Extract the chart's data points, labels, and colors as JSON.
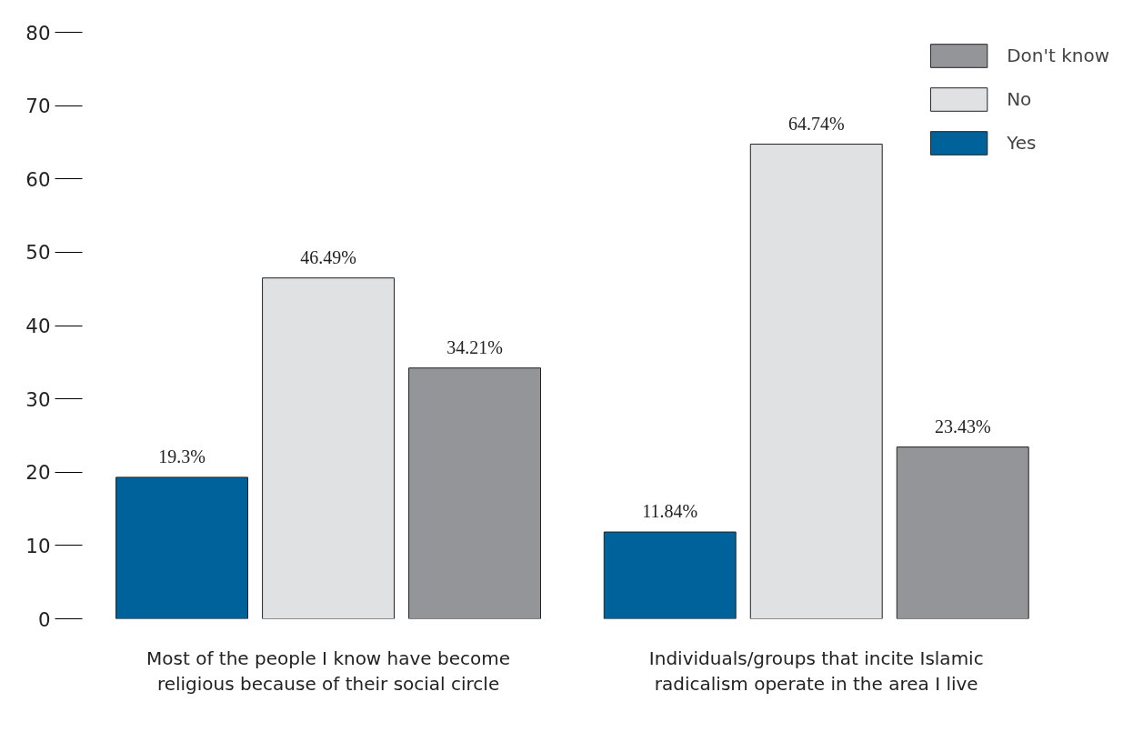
{
  "chart_data": {
    "type": "bar",
    "categories": [
      "Most of the people I know have become religious because of their social circle",
      "Individuals/groups that incite Islamic radicalism operate in the area I live"
    ],
    "series": [
      {
        "name": "Yes",
        "color": "#00629b",
        "values": [
          19.3,
          11.84
        ],
        "value_labels": [
          "19.3%",
          "11.84%"
        ]
      },
      {
        "name": "No",
        "color": "#e0e1e3",
        "values": [
          46.49,
          64.74
        ],
        "value_labels": [
          "46.49%",
          "64.74%"
        ]
      },
      {
        "name": "Don't know",
        "color": "#939598",
        "values": [
          34.21,
          23.43
        ],
        "value_labels": [
          "34.21%",
          "23.43%"
        ]
      }
    ],
    "ylim": [
      0,
      80
    ],
    "yticks": [
      0,
      10,
      20,
      30,
      40,
      50,
      60,
      70,
      80
    ],
    "grid": false,
    "legend": "top right"
  }
}
